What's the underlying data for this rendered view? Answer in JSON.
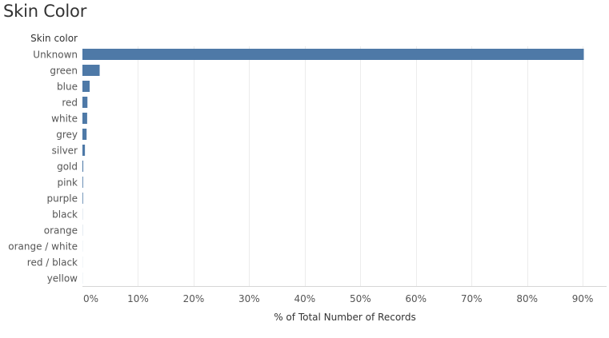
{
  "chart_data": {
    "type": "bar",
    "orientation": "horizontal",
    "title": "Skin Color",
    "category_header": "Skin color",
    "xlabel": "% of Total Number of Records",
    "categories": [
      "Unknown",
      "green",
      "blue",
      "red",
      "white",
      "grey",
      "silver",
      "gold",
      "pink",
      "purple",
      "black",
      "orange",
      "orange / white",
      "red / black",
      "yellow"
    ],
    "values": [
      90.2,
      3.1,
      1.3,
      0.9,
      0.85,
      0.75,
      0.45,
      0.15,
      0.12,
      0.11,
      0.02,
      0.02,
      0.01,
      0.01,
      0.01
    ],
    "xticks": [
      0,
      10,
      20,
      30,
      40,
      50,
      60,
      70,
      80,
      90
    ],
    "xtick_labels": [
      "0%",
      "10%",
      "20%",
      "30%",
      "40%",
      "50%",
      "60%",
      "70%",
      "80%",
      "90%"
    ],
    "xlim": [
      0,
      94.3
    ],
    "grid": "vertical",
    "bar_color": "#4e79a7"
  }
}
